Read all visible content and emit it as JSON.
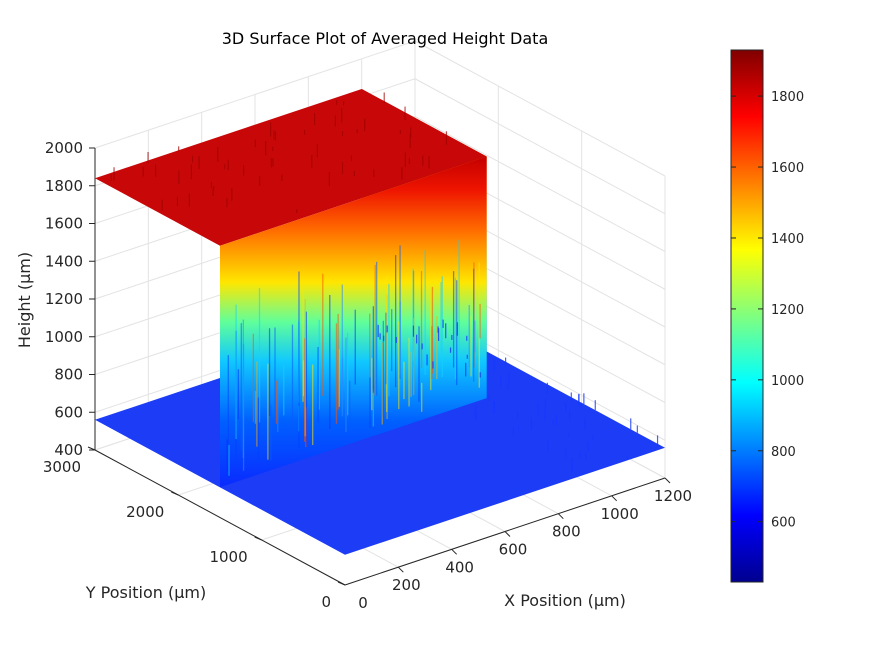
{
  "chart_data": {
    "type": "surface",
    "title": "3D Surface Plot of Averaged Height Data",
    "xlabel": "X Position (μm)",
    "ylabel": "Y Position (μm)",
    "zlabel": "Height (μm)",
    "x_ticks": [
      "200",
      "400",
      "600",
      "800",
      "1000",
      "1200"
    ],
    "x_zero_tick": "0",
    "y_ticks": [
      "0",
      "1000",
      "2000",
      "3000"
    ],
    "z_ticks": [
      "400",
      "600",
      "800",
      "1000",
      "1200",
      "1400",
      "1600",
      "1800",
      "2000"
    ],
    "xlim": [
      0,
      1200
    ],
    "ylim": [
      0,
      3000
    ],
    "zlim": [
      400,
      2000
    ],
    "grid": true,
    "colormap": "jet",
    "colorbar": {
      "placement": "right",
      "range": [
        430,
        1930
      ],
      "ticks": [
        "600",
        "800",
        "1000",
        "1200",
        "1400",
        "1600",
        "1800"
      ]
    },
    "surface_profile": {
      "base_height": 560,
      "plateau_height": 1840,
      "plateau_x_range": [
        0,
        1000
      ],
      "plateau_y_range": [
        1500,
        3000
      ]
    }
  }
}
